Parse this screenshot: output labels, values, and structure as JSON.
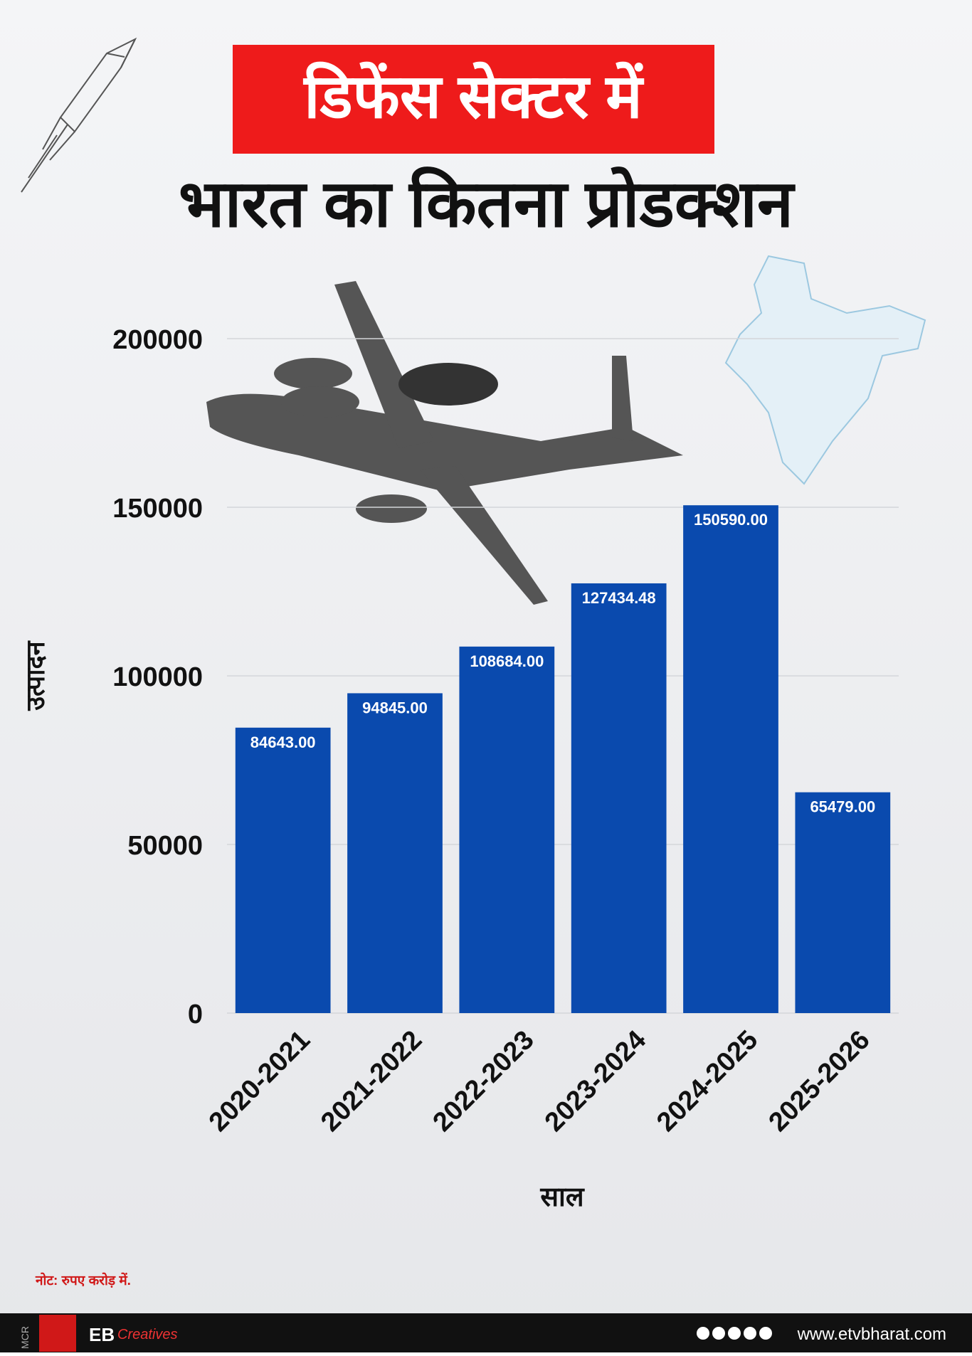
{
  "chart_data": {
    "type": "bar",
    "title": "डिफेंस सेक्टर में",
    "subtitle": "भारत का कितना प्रोडक्शन",
    "y_label": "उत्पादन",
    "x_label": "साल",
    "categories": [
      "2020-2021",
      "2021-2022",
      "2022-2023",
      "2023-2024",
      "2024-2025",
      "2025-2026"
    ],
    "values": [
      84643,
      94845,
      108684,
      127434.48,
      150590,
      65479
    ],
    "value_labels": [
      "84643.00",
      "94845.00",
      "108684.00",
      "127434.48",
      "150590.00",
      "65479.00"
    ],
    "color": "#0a4aae",
    "ylim": [
      0,
      200000
    ],
    "yticks": [
      0,
      50000,
      100000,
      150000,
      200000
    ],
    "grid": true,
    "note": "नोट: रुपए करोड़ में."
  },
  "footer": {
    "mcr": "MCR",
    "brand": "EB",
    "brand_sub": "Creatives",
    "url": "www.etvbharat.com"
  }
}
